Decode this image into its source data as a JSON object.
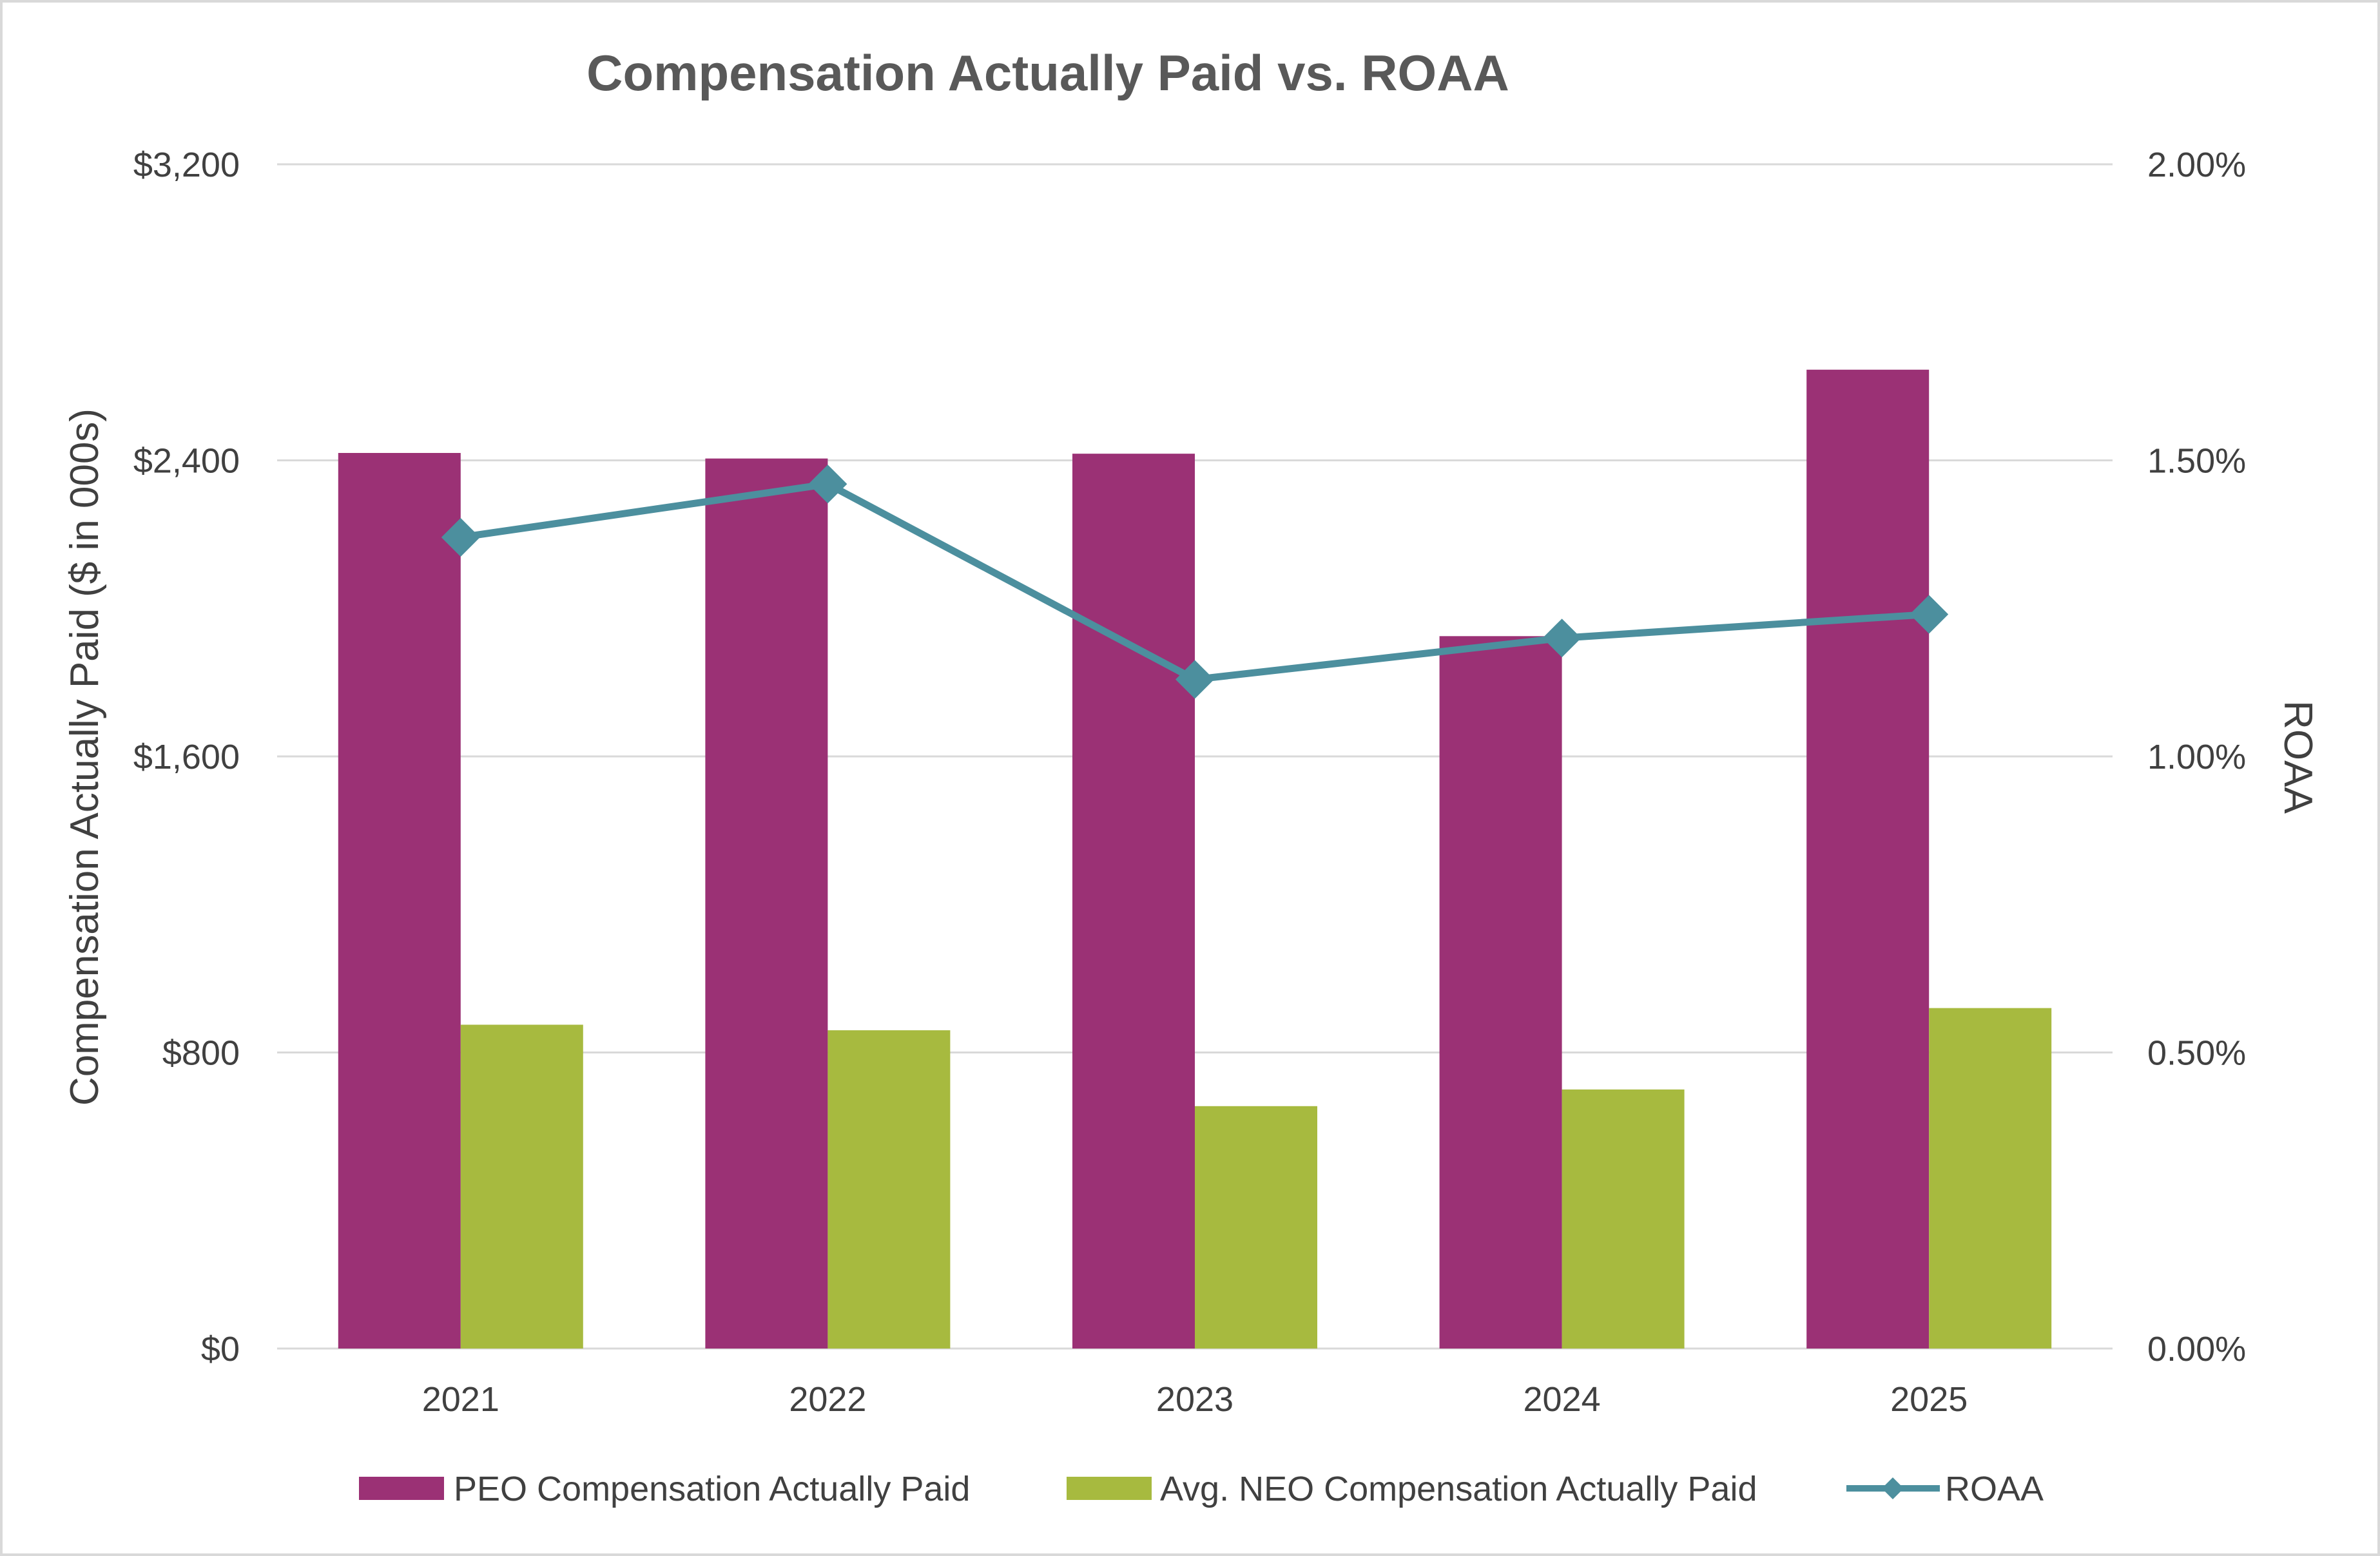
{
  "chart_data": {
    "type": "bar",
    "title": "Compensation Actually Paid vs. ROAA",
    "categories": [
      "2021",
      "2022",
      "2023",
      "2024",
      "2025"
    ],
    "series": [
      {
        "name": "PEO Compensation Actually Paid",
        "type": "bar",
        "axis": "left",
        "color": "#9B3175",
        "values": [
          2420,
          2405,
          2418,
          1925,
          2645
        ]
      },
      {
        "name": "Avg. NEO Compensation Actually Paid",
        "type": "bar",
        "axis": "left",
        "color": "#A7BA3F",
        "values": [
          875,
          860,
          655,
          700,
          920
        ]
      },
      {
        "name": "ROAA",
        "type": "line",
        "axis": "right",
        "color": "#4C8F9E",
        "marker": "diamond",
        "values": [
          1.37,
          1.46,
          1.13,
          1.2,
          1.24
        ]
      }
    ],
    "ylabel": "Compensation Actually Paid ($ in 000s)",
    "y2label": "ROAA",
    "ylim": [
      0,
      3200
    ],
    "y2lim": [
      0,
      2.0
    ],
    "yticks": [
      "$0",
      "$800",
      "$1,600",
      "$2,400",
      "$3,200"
    ],
    "yticks_values": [
      0,
      800,
      1600,
      2400,
      3200
    ],
    "y2ticks": [
      "0.00%",
      "0.50%",
      "1.00%",
      "1.50%",
      "2.00%"
    ],
    "y2ticks_values": [
      0,
      0.5,
      1.0,
      1.5,
      2.0
    ],
    "grid": true,
    "legend_position": "bottom"
  },
  "colors": {
    "grid": "#D9D9D9",
    "border": "#D9D9D9"
  }
}
